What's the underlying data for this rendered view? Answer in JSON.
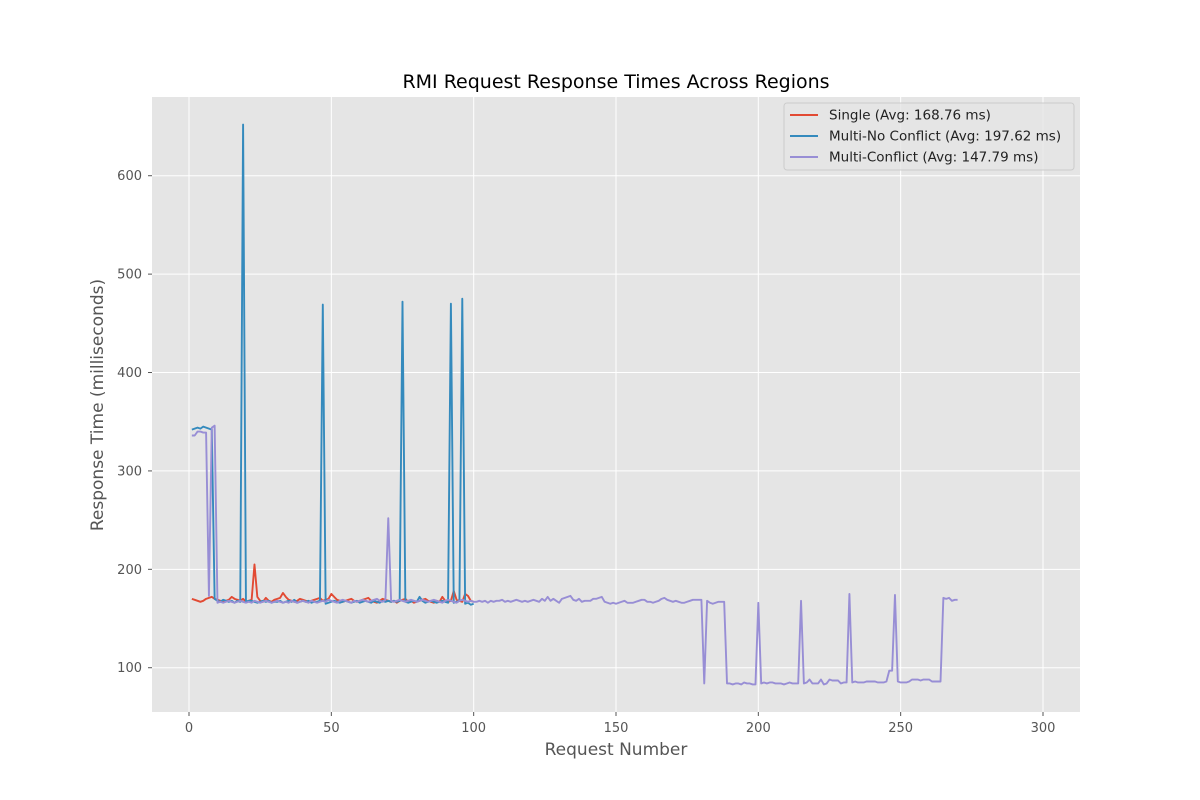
{
  "chart_data": {
    "type": "line",
    "title": "RMI Request Response Times Across Regions",
    "xlabel": "Request Number",
    "ylabel": "Response Time (milliseconds)",
    "xlim": [
      -13,
      313
    ],
    "ylim": [
      55,
      680
    ],
    "xticks": [
      0,
      50,
      100,
      150,
      200,
      250,
      300
    ],
    "yticks": [
      100,
      200,
      300,
      400,
      500,
      600
    ],
    "grid": true,
    "legend_position": "top-right",
    "series": [
      {
        "name": "Single (Avg: 168.76 ms)",
        "color": "#E24A33",
        "x_start": 1,
        "values": [
          170,
          169,
          168,
          167,
          168,
          170,
          171,
          172,
          170,
          169,
          168,
          167,
          168,
          169,
          172,
          170,
          169,
          168,
          170,
          167,
          168,
          169,
          205,
          172,
          168,
          167,
          171,
          168,
          167,
          169,
          170,
          171,
          176,
          172,
          169,
          168,
          167,
          168,
          170,
          169,
          168,
          167,
          168,
          169,
          170,
          171,
          168,
          169,
          170,
          175,
          172,
          169,
          168,
          167,
          168,
          169,
          170,
          168,
          167,
          168,
          169,
          170,
          171,
          168,
          167,
          166,
          168,
          170,
          169,
          168,
          167,
          168,
          166,
          168,
          169,
          170,
          167,
          168,
          166,
          167,
          168,
          169,
          170,
          168,
          167,
          166,
          168,
          167,
          172,
          168,
          167,
          168,
          178,
          169,
          168,
          167,
          175,
          173,
          168,
          167
        ]
      },
      {
        "name": "Multi-No Conflict (Avg: 197.62 ms)",
        "color": "#348ABD",
        "x_start": 1,
        "values": [
          342,
          343,
          344,
          343,
          345,
          344,
          343,
          342,
          170,
          168,
          167,
          169,
          168,
          167,
          168,
          166,
          168,
          167,
          652,
          167,
          168,
          168,
          167,
          166,
          167,
          168,
          167,
          168,
          166,
          167,
          167,
          168,
          166,
          167,
          168,
          167,
          169,
          166,
          167,
          168,
          167,
          168,
          166,
          167,
          167,
          168,
          469,
          165,
          166,
          167,
          168,
          167,
          166,
          167,
          168,
          167,
          166,
          167,
          168,
          166,
          167,
          168,
          167,
          166,
          168,
          167,
          166,
          168,
          167,
          168,
          167,
          168,
          167,
          168,
          472,
          167,
          166,
          167,
          168,
          167,
          172,
          168,
          166,
          167,
          168,
          167,
          166,
          167,
          168,
          167,
          166,
          470,
          166,
          167,
          168,
          475,
          165,
          166,
          164,
          165
        ]
      },
      {
        "name": "Multi-Conflict (Avg: 147.79 ms)",
        "color": "#988ED5",
        "x_start": 1,
        "values": [
          336,
          336,
          340,
          340,
          339,
          339,
          173,
          344,
          346,
          166,
          167,
          166,
          167,
          168,
          167,
          166,
          167,
          168,
          167,
          166,
          167,
          166,
          168,
          167,
          166,
          167,
          168,
          167,
          166,
          167,
          168,
          167,
          166,
          167,
          166,
          168,
          167,
          166,
          167,
          168,
          167,
          166,
          168,
          167,
          166,
          167,
          168,
          167,
          169,
          168,
          167,
          166,
          168,
          169,
          168,
          167,
          166,
          168,
          167,
          168,
          169,
          168,
          167,
          168,
          169,
          170,
          168,
          167,
          169,
          252,
          168,
          167,
          168,
          169,
          168,
          167,
          168,
          169,
          168,
          167,
          168,
          169,
          168,
          167,
          168,
          169,
          168,
          167,
          166,
          168,
          169,
          168,
          167,
          166,
          168,
          169,
          168,
          167,
          168,
          167,
          167,
          168,
          167,
          168,
          166,
          168,
          167,
          168,
          168,
          169,
          167,
          168,
          167,
          168,
          169,
          168,
          167,
          168,
          167,
          168,
          169,
          168,
          167,
          170,
          168,
          172,
          168,
          170,
          168,
          166,
          170,
          171,
          172,
          173,
          169,
          168,
          170,
          167,
          168,
          168,
          168,
          170,
          170,
          171,
          172,
          167,
          166,
          165,
          166,
          165,
          166,
          167,
          168,
          166,
          166,
          166,
          167,
          168,
          169,
          169,
          167,
          167,
          166,
          167,
          168,
          170,
          171,
          169,
          168,
          167,
          168,
          167,
          166,
          166,
          167,
          168,
          169,
          169,
          169,
          169,
          84,
          168,
          166,
          165,
          166,
          167,
          167,
          167,
          84,
          84,
          83,
          84,
          84,
          83,
          85,
          84,
          84,
          83,
          83,
          166,
          84,
          85,
          84,
          85,
          85,
          84,
          84,
          84,
          83,
          84,
          85,
          84,
          84,
          84,
          168,
          84,
          85,
          88,
          84,
          84,
          84,
          88,
          83,
          84,
          88,
          87,
          87,
          87,
          84,
          85,
          85,
          175,
          85,
          86,
          85,
          85,
          85,
          86,
          86,
          86,
          86,
          85,
          85,
          85,
          86,
          97,
          97,
          174,
          86,
          85,
          85,
          85,
          86,
          88,
          88,
          88,
          87,
          88,
          88,
          88,
          86,
          86,
          86,
          86,
          171,
          170,
          171,
          168,
          169,
          169
        ]
      }
    ]
  }
}
